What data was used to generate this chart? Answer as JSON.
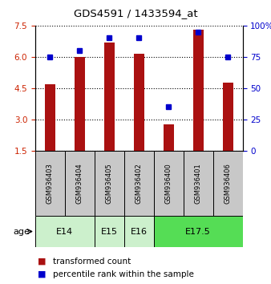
{
  "title": "GDS4591 / 1433594_at",
  "samples": [
    "GSM936403",
    "GSM936404",
    "GSM936405",
    "GSM936402",
    "GSM936400",
    "GSM936401",
    "GSM936406"
  ],
  "transformed_count": [
    4.7,
    6.0,
    6.7,
    6.15,
    2.75,
    7.3,
    4.75
  ],
  "percentile_rank": [
    75,
    80,
    90,
    90,
    35,
    95,
    75
  ],
  "age_groups": [
    {
      "label": "E14",
      "cols": [
        0,
        1
      ],
      "color": "#ccf0cc"
    },
    {
      "label": "E15",
      "cols": [
        2
      ],
      "color": "#ccf0cc"
    },
    {
      "label": "E16",
      "cols": [
        3
      ],
      "color": "#ccf0cc"
    },
    {
      "label": "E17.5",
      "cols": [
        4,
        5,
        6
      ],
      "color": "#55dd55"
    }
  ],
  "ylim_left": [
    1.5,
    7.5
  ],
  "ylim_right": [
    0,
    100
  ],
  "left_ticks": [
    1.5,
    3.0,
    4.5,
    6.0,
    7.5
  ],
  "right_ticks": [
    0,
    25,
    50,
    75,
    100
  ],
  "bar_color": "#aa1111",
  "dot_color": "#0000cc",
  "bg_color": "#ffffff",
  "plot_bg": "#ffffff",
  "sample_cell_color": "#c8c8c8",
  "label_color_left": "#cc2200",
  "label_color_right": "#0000cc",
  "legend_bar_label": "transformed count",
  "legend_dot_label": "percentile rank within the sample",
  "age_label": "age",
  "bar_width": 0.35
}
